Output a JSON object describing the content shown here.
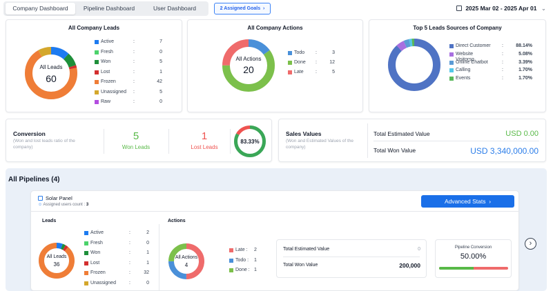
{
  "tabs": [
    {
      "label": "Company Dashboard",
      "active": true
    },
    {
      "label": "Pipeline Dashboard",
      "active": false
    },
    {
      "label": "User Dashboard",
      "active": false
    }
  ],
  "goals_button": "2 Assigned Goals",
  "date_range": "2025 Mar 02 - 2025 Apr 01",
  "company_leads": {
    "title": "All Company Leads",
    "center_label": "All Leads",
    "center_value": "60",
    "items": [
      {
        "label": "Active",
        "value": "7",
        "color": "#1d7bf0"
      },
      {
        "label": "Fresh",
        "value": "0",
        "color": "#4cd26b"
      },
      {
        "label": "Won",
        "value": "5",
        "color": "#1e8f3a"
      },
      {
        "label": "Lost",
        "value": "1",
        "color": "#d32f2f"
      },
      {
        "label": "Frozen",
        "value": "42",
        "color": "#ef7d37"
      },
      {
        "label": "Unassigned",
        "value": "5",
        "color": "#d4a72c"
      },
      {
        "label": "Raw",
        "value": "0",
        "color": "#b34de0"
      }
    ]
  },
  "company_actions": {
    "title": "All Company Actions",
    "center_label": "All Actions",
    "center_value": "20",
    "items": [
      {
        "label": "Todo",
        "value": "3",
        "color": "#4a90d9"
      },
      {
        "label": "Done",
        "value": "12",
        "color": "#7cc04b"
      },
      {
        "label": "Late",
        "value": "5",
        "color": "#ef6b6b"
      }
    ]
  },
  "lead_sources": {
    "title": "Top 5 Leads Sources of Company",
    "items": [
      {
        "label": "Direct Customer",
        "value": "88.14%",
        "pct": 88.14,
        "color": "#4f73c4"
      },
      {
        "label": "Website Visitorsg",
        "value": "5.08%",
        "pct": 5.08,
        "color": "#a86fe0"
      },
      {
        "label": "Online Chatbot",
        "value": "3.39%",
        "pct": 3.39,
        "color": "#5b9bd5"
      },
      {
        "label": "Calling",
        "value": "1.70%",
        "pct": 1.7,
        "color": "#53c8e8"
      },
      {
        "label": "Events",
        "value": "1.70%",
        "pct": 1.7,
        "color": "#59b85a"
      }
    ]
  },
  "conversion": {
    "title": "Conversion",
    "subtitle": "(Won and lost leads ratio of the company)",
    "won_value": "5",
    "won_label": "Won Leads",
    "lost_value": "1",
    "lost_label": "Lost Leads",
    "ratio": "83.33%",
    "ratio_pct": 83.33
  },
  "sales": {
    "title": "Sales Values",
    "subtitle": "(Won and Estimated Values of the company)",
    "estimated_label": "Total Estimated Value",
    "estimated_value": "USD 0.00",
    "won_label": "Total Won Value",
    "won_value": "USD 3,340,000.00"
  },
  "pipelines": {
    "heading": "All Pipelines (4)",
    "pipeline": {
      "name": "Solar Panel",
      "assigned_label": "Assigned users count :",
      "assigned_count": "3",
      "advanced_button": "Advanced Stats",
      "leads_title": "Leads",
      "leads_center_label": "All Leads",
      "leads_center_value": "36",
      "leads_items": [
        {
          "label": "Active",
          "value": "2",
          "color": "#1d7bf0"
        },
        {
          "label": "Fresh",
          "value": "0",
          "color": "#4cd26b"
        },
        {
          "label": "Won",
          "value": "1",
          "color": "#1e8f3a"
        },
        {
          "label": "Lost",
          "value": "1",
          "color": "#d32f2f"
        },
        {
          "label": "Frozen",
          "value": "32",
          "color": "#ef7d37"
        },
        {
          "label": "Unassigned",
          "value": "0",
          "color": "#d4a72c"
        }
      ],
      "actions_title": "Actions",
      "actions_center_label": "All Actions",
      "actions_center_value": "4",
      "actions_items": [
        {
          "label": "Late",
          "value": "2",
          "color": "#ef6b6b"
        },
        {
          "label": "Todo",
          "value": "1",
          "color": "#4a90d9"
        },
        {
          "label": "Done",
          "value": "1",
          "color": "#7cc04b"
        }
      ],
      "estimated_label": "Total Estimated Value",
      "estimated_value": "0",
      "won_label": "Total Won Value",
      "won_value": "200,000",
      "conversion_label": "Pipeline Conversion",
      "conversion_value": "50.00%",
      "conversion_pct": 50
    }
  }
}
